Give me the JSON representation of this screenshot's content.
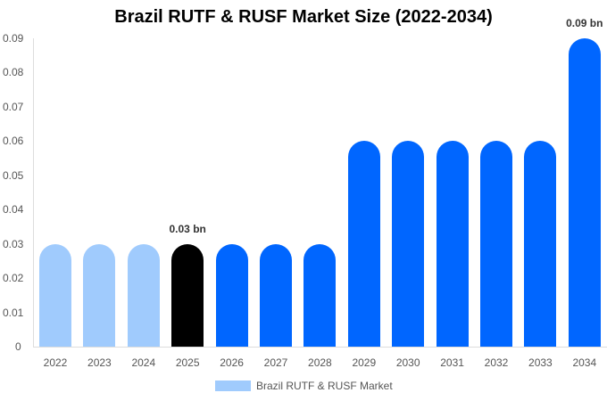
{
  "chart_data": {
    "type": "bar",
    "title": "Brazil RUTF & RUSF Market Size (2022-2034)",
    "xlabel": "",
    "ylabel": "",
    "ylim": [
      0,
      0.09
    ],
    "yticks": [
      "0",
      "0.01",
      "0.02",
      "0.03",
      "0.04",
      "0.05",
      "0.06",
      "0.07",
      "0.08",
      "0.09"
    ],
    "categories": [
      "2022",
      "2023",
      "2024",
      "2025",
      "2026",
      "2027",
      "2028",
      "2029",
      "2030",
      "2031",
      "2032",
      "2033",
      "2034"
    ],
    "series": [
      {
        "name": "Brazil RUTF & RUSF Market",
        "values": [
          0.03,
          0.03,
          0.03,
          0.03,
          0.03,
          0.03,
          0.03,
          0.06,
          0.06,
          0.06,
          0.06,
          0.06,
          0.09
        ]
      }
    ],
    "bar_colors": [
      "#a0cbfd",
      "#a0cbfd",
      "#a0cbfd",
      "#000000",
      "#0066ff",
      "#0066ff",
      "#0066ff",
      "#0066ff",
      "#0066ff",
      "#0066ff",
      "#0066ff",
      "#0066ff",
      "#0066ff"
    ],
    "annotations": [
      {
        "category": "2025",
        "text": "0.03 bn"
      },
      {
        "category": "2034",
        "text": "0.09 bn"
      }
    ],
    "legend": {
      "position": "bottom",
      "label": "Brazil RUTF & RUSF Market",
      "color": "#a0cbfd"
    },
    "grid": false
  }
}
